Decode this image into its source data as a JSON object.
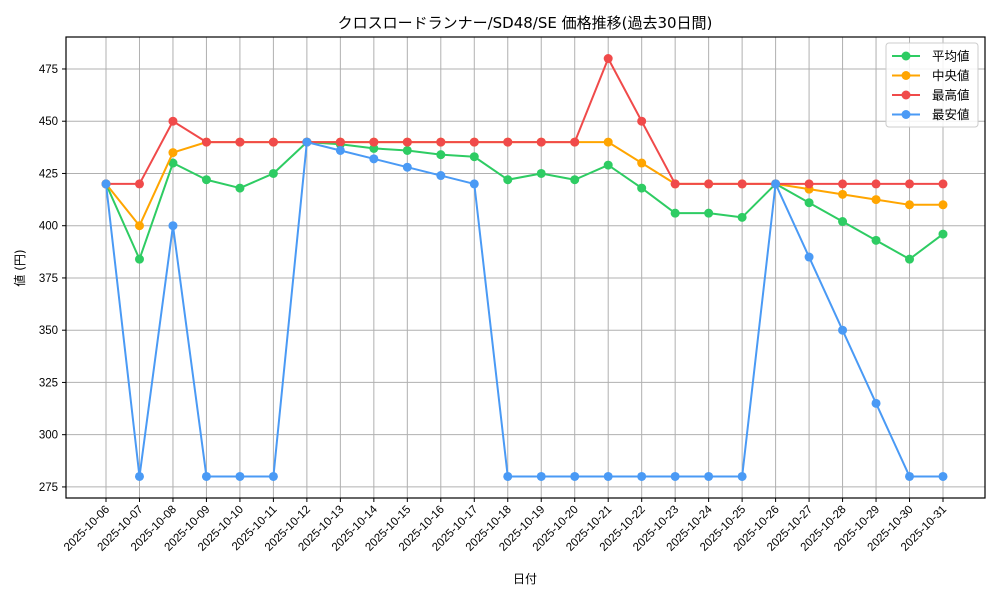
{
  "chart_data": {
    "type": "line",
    "title": "クロスロードランナー/SD48/SE 価格推移(過去30日間)",
    "xlabel": "日付",
    "ylabel": "値 (円)",
    "ylim": [
      269.7,
      490.3
    ],
    "yticks": [
      275,
      300,
      325,
      350,
      375,
      400,
      425,
      450,
      475
    ],
    "grid": true,
    "legend_position": "upper right",
    "x": [
      "2025-10-06",
      "2025-10-07",
      "2025-10-08",
      "2025-10-09",
      "2025-10-10",
      "2025-10-11",
      "2025-10-12",
      "2025-10-13",
      "2025-10-14",
      "2025-10-15",
      "2025-10-16",
      "2025-10-17",
      "2025-10-18",
      "2025-10-19",
      "2025-10-20",
      "2025-10-21",
      "2025-10-22",
      "2025-10-23",
      "2025-10-24",
      "2025-10-25",
      "2025-10-26",
      "2025-10-27",
      "2025-10-28",
      "2025-10-29",
      "2025-10-30",
      "2025-10-31"
    ],
    "series": [
      {
        "name": "平均値",
        "color": "#2ecc63",
        "values": [
          420,
          384,
          430,
          422,
          418,
          425,
          440,
          439,
          437,
          436,
          434,
          433,
          422,
          425,
          422,
          429,
          418,
          406,
          406,
          404,
          420,
          411,
          402,
          393,
          384,
          396
        ]
      },
      {
        "name": "中央値",
        "color": "#ffa500",
        "values": [
          420,
          400,
          435,
          440,
          440,
          440,
          440,
          440,
          440,
          440,
          440,
          440,
          440,
          440,
          440,
          440,
          430,
          420,
          420,
          420,
          420,
          417.5,
          415,
          412.5,
          410,
          410
        ]
      },
      {
        "name": "最高値",
        "color": "#f04a4a",
        "values": [
          420,
          420,
          450,
          440,
          440,
          440,
          440,
          440,
          440,
          440,
          440,
          440,
          440,
          440,
          440,
          480,
          450,
          420,
          420,
          420,
          420,
          420,
          420,
          420,
          420,
          420
        ]
      },
      {
        "name": "最安値",
        "color": "#4a9af5",
        "values": [
          420,
          280,
          400,
          280,
          280,
          280,
          440,
          436,
          432,
          428,
          424,
          420,
          280,
          280,
          280,
          280,
          280,
          280,
          280,
          280,
          420,
          385,
          350,
          315,
          280,
          280
        ]
      }
    ]
  }
}
